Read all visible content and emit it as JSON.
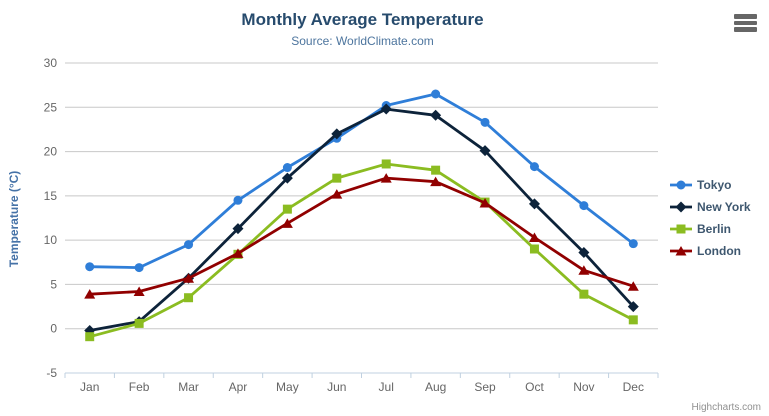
{
  "chart": {
    "title": "Monthly Average Temperature",
    "subtitle": "Source: WorldClimate.com"
  },
  "credits": "Highcharts.com",
  "icons": {
    "export_menu": "hamburger-icon"
  },
  "colors": {
    "title": "#274b6d",
    "subtitle": "#4d759e",
    "axis_title": "#4572a7",
    "axis_labels": "#666666",
    "gridline": "#c8c8c8",
    "axis_line": "#c0d0e0",
    "legend_text": "#3e576f",
    "credits_text": "#909090"
  },
  "chart_data": {
    "type": "line",
    "title": "Monthly Average Temperature",
    "subtitle": "Source: WorldClimate.com",
    "xlabel": "",
    "ylabel": "Temperature (°C)",
    "ylim": [
      -5,
      30
    ],
    "ytick_interval": 5,
    "yticks": [
      -5,
      0,
      5,
      10,
      15,
      20,
      25,
      30
    ],
    "grid": true,
    "legend_position": "right",
    "categories": [
      "Jan",
      "Feb",
      "Mar",
      "Apr",
      "May",
      "Jun",
      "Jul",
      "Aug",
      "Sep",
      "Oct",
      "Nov",
      "Dec"
    ],
    "series": [
      {
        "name": "Tokyo",
        "color": "#2f7ed8",
        "marker": "circle",
        "values": [
          7.0,
          6.9,
          9.5,
          14.5,
          18.2,
          21.5,
          25.2,
          26.5,
          23.3,
          18.3,
          13.9,
          9.6
        ]
      },
      {
        "name": "New York",
        "color": "#0d233a",
        "marker": "diamond",
        "values": [
          -0.2,
          0.8,
          5.7,
          11.3,
          17.0,
          22.0,
          24.8,
          24.1,
          20.1,
          14.1,
          8.6,
          2.5
        ]
      },
      {
        "name": "Berlin",
        "color": "#8bbc21",
        "marker": "square",
        "values": [
          -0.9,
          0.6,
          3.5,
          8.4,
          13.5,
          17.0,
          18.6,
          17.9,
          14.3,
          9.0,
          3.9,
          1.0
        ]
      },
      {
        "name": "London",
        "color": "#910000",
        "marker": "triangle-up",
        "values": [
          3.9,
          4.2,
          5.7,
          8.5,
          11.9,
          15.2,
          17.0,
          16.6,
          14.2,
          10.3,
          6.6,
          4.8
        ]
      }
    ]
  }
}
